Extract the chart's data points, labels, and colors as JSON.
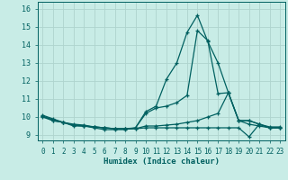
{
  "xlabel": "Humidex (Indice chaleur)",
  "ylabel": "",
  "background_color": "#c8ece6",
  "grid_color": "#aed4ce",
  "line_color": "#006060",
  "xlim": [
    -0.5,
    23.5
  ],
  "ylim": [
    8.7,
    16.4
  ],
  "yticks": [
    9,
    10,
    11,
    12,
    13,
    14,
    15,
    16
  ],
  "xticks": [
    0,
    1,
    2,
    3,
    4,
    5,
    6,
    7,
    8,
    9,
    10,
    11,
    12,
    13,
    14,
    15,
    16,
    17,
    18,
    19,
    20,
    21,
    22,
    23
  ],
  "series": [
    {
      "x": [
        0,
        1,
        2,
        3,
        4,
        5,
        6,
        7,
        8,
        9,
        10,
        11,
        12,
        13,
        14,
        15,
        16,
        17,
        18,
        19,
        20,
        21,
        22,
        23
      ],
      "y": [
        10.1,
        9.9,
        9.7,
        9.5,
        9.5,
        9.4,
        9.3,
        9.3,
        9.3,
        9.4,
        10.3,
        10.6,
        12.1,
        13.0,
        14.7,
        15.65,
        14.2,
        13.0,
        11.35,
        9.8,
        9.8,
        9.6,
        9.45,
        9.45
      ]
    },
    {
      "x": [
        0,
        1,
        2,
        3,
        4,
        5,
        6,
        7,
        8,
        9,
        10,
        11,
        12,
        13,
        14,
        15,
        16,
        17,
        18,
        19,
        20,
        21,
        22,
        23
      ],
      "y": [
        10.05,
        9.85,
        9.7,
        9.6,
        9.55,
        9.45,
        9.4,
        9.35,
        9.35,
        9.4,
        10.2,
        10.5,
        10.6,
        10.8,
        11.2,
        14.8,
        14.25,
        11.3,
        11.35,
        9.8,
        9.6,
        9.5,
        9.4,
        9.4
      ]
    },
    {
      "x": [
        0,
        1,
        2,
        3,
        4,
        5,
        6,
        7,
        8,
        9,
        10,
        11,
        12,
        13,
        14,
        15,
        16,
        17,
        18,
        19,
        20,
        21,
        22,
        23
      ],
      "y": [
        10.05,
        9.8,
        9.7,
        9.55,
        9.5,
        9.45,
        9.4,
        9.35,
        9.35,
        9.35,
        9.4,
        9.4,
        9.4,
        9.4,
        9.4,
        9.4,
        9.4,
        9.4,
        9.4,
        9.4,
        8.9,
        9.6,
        9.4,
        9.4
      ]
    },
    {
      "x": [
        0,
        1,
        2,
        3,
        4,
        5,
        6,
        7,
        8,
        9,
        10,
        11,
        12,
        13,
        14,
        15,
        16,
        17,
        18,
        19,
        20,
        21,
        22,
        23
      ],
      "y": [
        10.0,
        9.8,
        9.7,
        9.55,
        9.5,
        9.45,
        9.4,
        9.35,
        9.35,
        9.35,
        9.5,
        9.5,
        9.55,
        9.6,
        9.7,
        9.8,
        10.0,
        10.2,
        11.35,
        9.8,
        9.8,
        9.6,
        9.4,
        9.4
      ]
    }
  ]
}
